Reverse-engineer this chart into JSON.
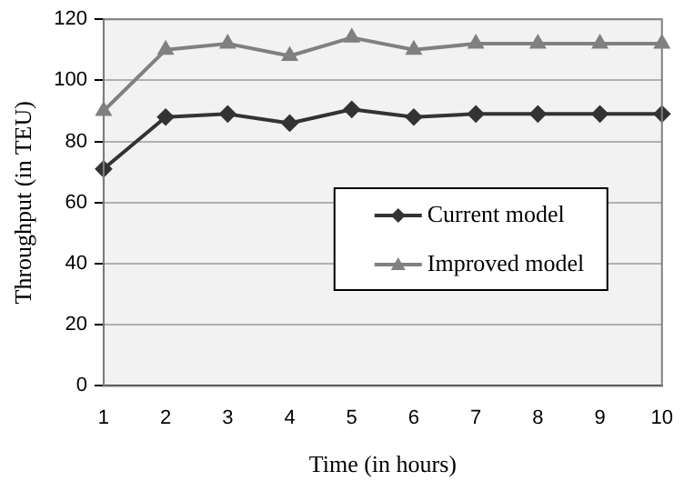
{
  "chart_data": {
    "type": "line",
    "xlabel": "Time (in hours)",
    "ylabel": "Throughput (in TEU)",
    "categories": [
      "1",
      "2",
      "3",
      "4",
      "5",
      "6",
      "7",
      "8",
      "9",
      "10"
    ],
    "series": [
      {
        "name": "Current model",
        "color": "#333333",
        "marker": "diamond",
        "values": [
          71,
          88,
          89,
          86,
          90.5,
          88,
          89,
          89,
          89,
          89
        ]
      },
      {
        "name": "Improved model",
        "color": "#808080",
        "marker": "triangle",
        "values": [
          90,
          110,
          112,
          108,
          114,
          110,
          112,
          112,
          112,
          112
        ]
      }
    ],
    "ylim": [
      0,
      120
    ],
    "yticks": [
      0,
      20,
      40,
      60,
      80,
      100,
      120
    ],
    "grid": "y",
    "legend": "right"
  }
}
